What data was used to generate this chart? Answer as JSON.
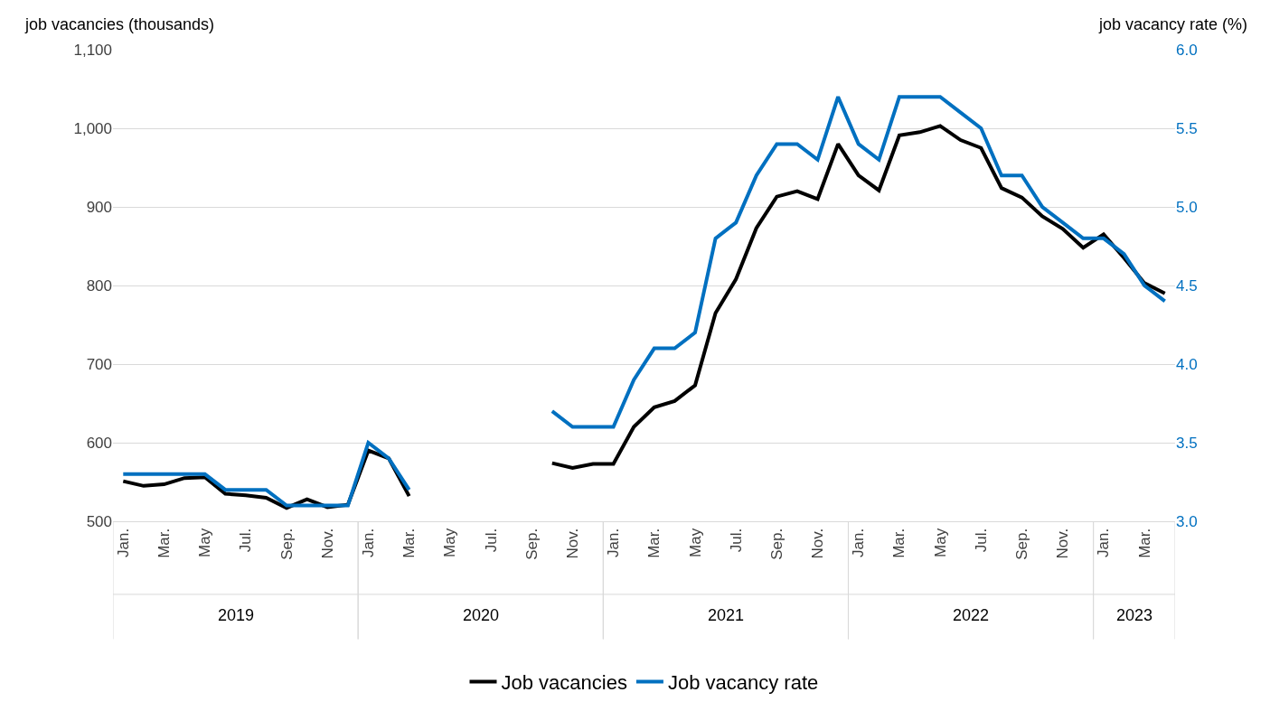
{
  "chart_data": {
    "type": "line",
    "ylabel": "job vacancies (thousands)",
    "y2label": "job vacancy rate (%)",
    "categories": [
      "Jan.",
      null,
      "Mar.",
      null,
      "May",
      null,
      "Jul.",
      null,
      "Sep.",
      null,
      "Nov.",
      null,
      "Jan.",
      null,
      "Mar.",
      null,
      "May",
      null,
      "Jul.",
      null,
      "Sep.",
      null,
      "Nov.",
      null,
      "Jan.",
      null,
      "Mar.",
      null,
      "May",
      null,
      "Jul.",
      null,
      "Sep.",
      null,
      "Nov.",
      null,
      "Jan.",
      null,
      "Mar.",
      null,
      "May",
      null,
      "Jul.",
      null,
      "Sep.",
      null,
      "Nov.",
      null,
      "Jan.",
      null,
      "Mar.",
      null
    ],
    "series": [
      {
        "name": "Job vacancies",
        "color": "#000000",
        "values": [
          551,
          545,
          547,
          555,
          556,
          535,
          533,
          530,
          517,
          528,
          518,
          521,
          590,
          580,
          532,
          null,
          null,
          null,
          null,
          null,
          null,
          574,
          568,
          573,
          573,
          620,
          645,
          653,
          673,
          765,
          808,
          873,
          913,
          920,
          910,
          980,
          940,
          921,
          991,
          995,
          1003,
          985,
          975,
          924,
          912,
          888,
          872,
          848,
          865,
          835,
          803,
          790
        ]
      },
      {
        "name": "Job vacancy rate",
        "color": "#0070c0",
        "axis": "y2",
        "values": [
          3.3,
          3.3,
          3.3,
          3.3,
          3.3,
          3.2,
          3.2,
          3.2,
          3.1,
          3.1,
          3.1,
          3.1,
          3.5,
          3.4,
          3.2,
          null,
          null,
          null,
          null,
          null,
          null,
          3.7,
          3.6,
          3.6,
          3.6,
          3.9,
          4.1,
          4.1,
          4.2,
          4.8,
          4.9,
          5.2,
          5.4,
          5.4,
          5.3,
          5.7,
          5.4,
          5.3,
          5.7,
          5.7,
          5.7,
          5.6,
          5.5,
          5.2,
          5.2,
          5.0,
          4.9,
          4.8,
          4.8,
          4.7,
          4.5,
          4.4
        ]
      }
    ],
    "ylim": [
      500,
      1100
    ],
    "yticks": [
      500,
      600,
      700,
      800,
      900,
      {
        "value": 1000,
        "label": "1,000"
      },
      {
        "value": 1100,
        "label": "1,100"
      }
    ],
    "y2lim": [
      3.0,
      6.0
    ],
    "y2ticks": [
      {
        "value": 3.0,
        "label": "3.0"
      },
      3.5,
      {
        "value": 4.0,
        "label": "4.0"
      },
      4.5,
      {
        "value": 5.0,
        "label": "5.0"
      },
      5.5,
      {
        "value": 6.0,
        "label": "6.0"
      }
    ],
    "annotations": [
      "2019",
      "2020",
      "2021",
      "2022",
      "2023"
    ],
    "grid": "y",
    "legend": "bottom",
    "marker": "none",
    "line_style": "solid"
  }
}
